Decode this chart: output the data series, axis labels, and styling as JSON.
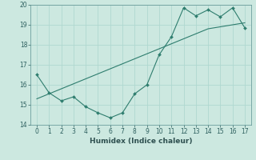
{
  "xlabel": "Humidex (Indice chaleur)",
  "x_data": [
    0,
    1,
    2,
    3,
    4,
    5,
    6,
    7,
    8,
    9,
    10,
    11,
    12,
    13,
    14,
    15,
    16,
    17
  ],
  "y_line": [
    16.5,
    15.6,
    15.2,
    15.4,
    14.9,
    14.6,
    14.35,
    14.6,
    15.55,
    16.0,
    17.5,
    18.4,
    19.85,
    19.45,
    19.75,
    19.4,
    19.85,
    18.85
  ],
  "y_trend": [
    15.3,
    15.55,
    15.8,
    16.05,
    16.3,
    16.55,
    16.8,
    17.05,
    17.3,
    17.55,
    17.8,
    18.05,
    18.3,
    18.55,
    18.8,
    18.9,
    19.0,
    19.1
  ],
  "line_color": "#2e7d6e",
  "trend_color": "#2e7d6e",
  "bg_color": "#cce8e0",
  "grid_color": "#b0d8d0",
  "ylim": [
    14,
    20
  ],
  "xlim": [
    -0.5,
    17.5
  ],
  "yticks": [
    14,
    15,
    16,
    17,
    18,
    19,
    20
  ],
  "xticks": [
    0,
    1,
    2,
    3,
    4,
    5,
    6,
    7,
    8,
    9,
    10,
    11,
    12,
    13,
    14,
    15,
    16,
    17
  ],
  "tick_fontsize": 5.5,
  "xlabel_fontsize": 6.5
}
